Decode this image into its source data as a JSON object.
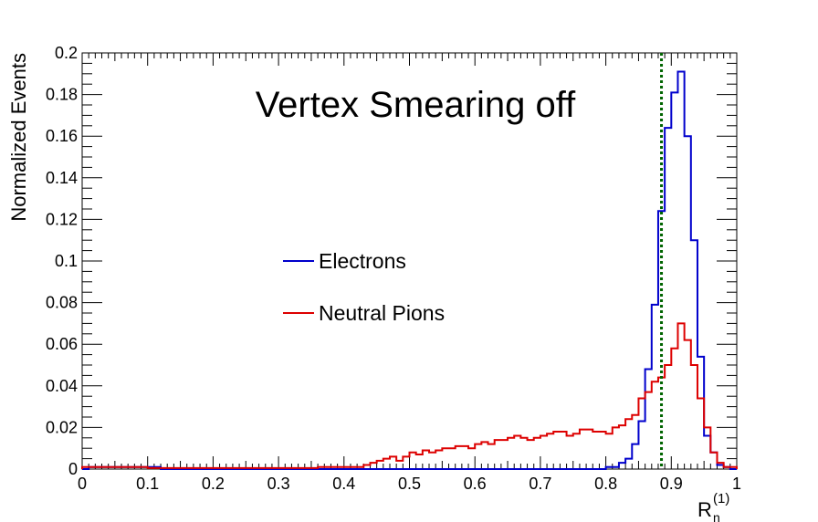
{
  "chart_data": {
    "type": "line",
    "title": "Vertex Smearing off",
    "xlabel_main": "R",
    "xlabel_sub": "n",
    "xlabel_sup": "(1)",
    "ylabel": "Normalized Events",
    "xlim": [
      0,
      1
    ],
    "ylim": [
      0,
      0.2
    ],
    "x_ticks": [
      "0",
      "0.1",
      "0.2",
      "0.3",
      "0.4",
      "0.5",
      "0.6",
      "0.7",
      "0.8",
      "0.9",
      "1"
    ],
    "y_ticks": [
      "0",
      "0.02",
      "0.04",
      "0.06",
      "0.08",
      "0.1",
      "0.12",
      "0.14",
      "0.16",
      "0.18",
      "0.2"
    ],
    "bin_width": 0.01,
    "legend_position": "center",
    "grid": false,
    "cut_line_x": 0.885,
    "cut_line_color": "#006400",
    "series": [
      {
        "name": "Electrons",
        "color": "#0000cc",
        "values": [
          0,
          0.001,
          0.001,
          0.001,
          0.001,
          0.001,
          0.001,
          0.001,
          0.001,
          0.001,
          0.001,
          0.001,
          0,
          0,
          0,
          0,
          0,
          0,
          0,
          0,
          0,
          0,
          0,
          0,
          0,
          0,
          0,
          0,
          0,
          0,
          0,
          0,
          0,
          0,
          0,
          0,
          0,
          0,
          0,
          0,
          0,
          0,
          0,
          0,
          0,
          0,
          0,
          0,
          0,
          0,
          0,
          0,
          0,
          0,
          0,
          0,
          0,
          0,
          0,
          0,
          0,
          0,
          0,
          0,
          0,
          0,
          0,
          0,
          0,
          0,
          0,
          0,
          0,
          0,
          0,
          0,
          0,
          0,
          0,
          0,
          0.001,
          0.001,
          0.003,
          0.005,
          0.012,
          0.023,
          0.048,
          0.079,
          0.124,
          0.164,
          0.181,
          0.191,
          0.16,
          0.11,
          0.054,
          0.016,
          0.008,
          0.002,
          0.001,
          0
        ]
      },
      {
        "name": "Neutral Pions",
        "color": "#dd0000",
        "values": [
          0.001,
          0.001,
          0.001,
          0.001,
          0.001,
          0.001,
          0.001,
          0.001,
          0.001,
          0.001,
          0.0005,
          0.0005,
          0.0005,
          0.0005,
          0.0005,
          0.0005,
          0.0005,
          0.0005,
          0.0005,
          0.0005,
          0.0005,
          0.0005,
          0.0005,
          0.0005,
          0.0005,
          0.0005,
          0.0005,
          0.0005,
          0.0005,
          0.0005,
          0.0005,
          0.0005,
          0.0005,
          0.0005,
          0.0005,
          0.0005,
          0.001,
          0.001,
          0.001,
          0.001,
          0.001,
          0.001,
          0.001,
          0.002,
          0.003,
          0.004,
          0.005,
          0.006,
          0.004,
          0.006,
          0.008,
          0.007,
          0.009,
          0.008,
          0.009,
          0.01,
          0.01,
          0.011,
          0.011,
          0.01,
          0.012,
          0.013,
          0.012,
          0.014,
          0.014,
          0.015,
          0.016,
          0.015,
          0.014,
          0.015,
          0.016,
          0.017,
          0.018,
          0.018,
          0.016,
          0.017,
          0.019,
          0.019,
          0.018,
          0.018,
          0.017,
          0.02,
          0.021,
          0.024,
          0.026,
          0.034,
          0.037,
          0.042,
          0.044,
          0.05,
          0.058,
          0.07,
          0.062,
          0.05,
          0.034,
          0.02,
          0.008,
          0.003,
          0.001,
          0.001
        ]
      }
    ]
  }
}
